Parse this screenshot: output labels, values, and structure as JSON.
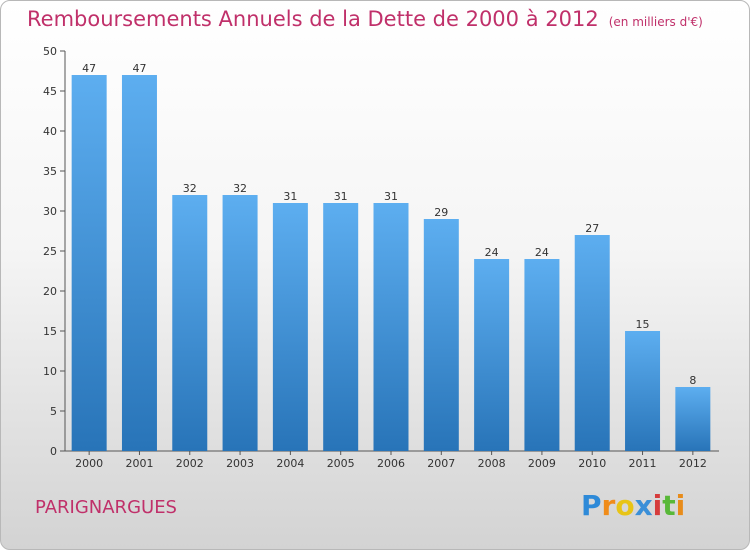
{
  "title": "Remboursements Annuels de la Dette de 2000 à 2012",
  "subtitle": "(en milliers d'€)",
  "place": "PARIGNARGUES",
  "brand": {
    "letters": [
      "P",
      "r",
      "o",
      "x",
      "i",
      "t",
      "i"
    ],
    "colors": [
      "#2e8ad8",
      "#f08c1a",
      "#e8c417",
      "#3a8fd8",
      "#d63c3c",
      "#58b838",
      "#e88c1a"
    ]
  },
  "colors": {
    "bar_top": "#5daef0",
    "bar_bottom": "#2874b8",
    "axis": "#555555",
    "grid": "#e4e4e4",
    "accent": "#c0306a"
  },
  "chart_data": {
    "type": "bar",
    "categories": [
      "2000",
      "2001",
      "2002",
      "2003",
      "2004",
      "2005",
      "2006",
      "2007",
      "2008",
      "2009",
      "2010",
      "2011",
      "2012"
    ],
    "values": [
      47,
      47,
      32,
      32,
      31,
      31,
      31,
      29,
      24,
      24,
      27,
      15,
      8
    ],
    "yticks": [
      0,
      5,
      10,
      15,
      20,
      25,
      30,
      35,
      40,
      45,
      50
    ],
    "ylim": [
      0,
      50
    ],
    "grid": false,
    "data_labels": true
  }
}
